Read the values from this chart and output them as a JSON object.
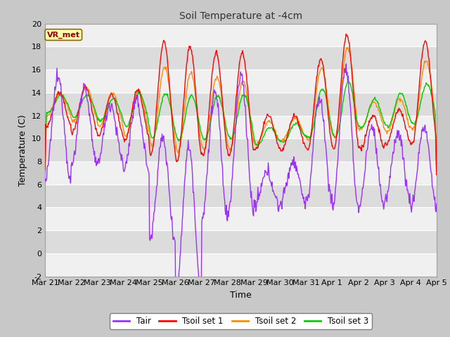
{
  "title": "Soil Temperature at -4cm",
  "xlabel": "Time",
  "ylabel": "Temperature (C)",
  "ylim": [
    -2,
    20
  ],
  "yticks": [
    -2,
    0,
    2,
    4,
    6,
    8,
    10,
    12,
    14,
    16,
    18,
    20
  ],
  "legend_labels": [
    "Tair",
    "Tsoil set 1",
    "Tsoil set 2",
    "Tsoil set 3"
  ],
  "line_colors": [
    "#9B30FF",
    "#FF0000",
    "#FF8C00",
    "#00CC00"
  ],
  "annotation_text": "VR_met",
  "annotation_color": "#8B0000",
  "annotation_bg": "#FFFFAA",
  "x_tick_labels": [
    "Mar 21",
    "Mar 22",
    "Mar 23",
    "Mar 24",
    "Mar 25",
    "Mar 26",
    "Mar 27",
    "Mar 28",
    "Mar 29",
    "Mar 30",
    "Mar 31",
    "Apr 1",
    "Apr 2",
    "Apr 3",
    "Apr 4",
    "Apr 5"
  ],
  "x_tick_positions": [
    0,
    1,
    2,
    3,
    4,
    5,
    6,
    7,
    8,
    9,
    10,
    11,
    12,
    13,
    14,
    15
  ],
  "figsize": [
    6.4,
    4.8
  ],
  "dpi": 100,
  "fig_bg": "#C8C8C8",
  "plot_bg_light": "#F0F0F0",
  "plot_bg_dark": "#DCDCDC"
}
